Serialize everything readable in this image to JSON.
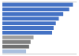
{
  "chart_data": {
    "type": "bar",
    "orientation": "horizontal",
    "categories": [
      null,
      null,
      null,
      null,
      null,
      null,
      null,
      null,
      null,
      null,
      null
    ],
    "values": [
      95,
      90,
      82,
      76,
      72,
      69,
      67,
      42,
      38,
      36,
      32
    ],
    "colors": [
      "#4472c4",
      "#4472c4",
      "#4472c4",
      "#4472c4",
      "#4472c4",
      "#4472c4",
      "#4472c4",
      "#9e9e9e",
      "#808080",
      "#707070",
      "#aabfdd"
    ],
    "xlim": [
      0,
      100
    ],
    "grid": false,
    "tick_labels": false
  }
}
